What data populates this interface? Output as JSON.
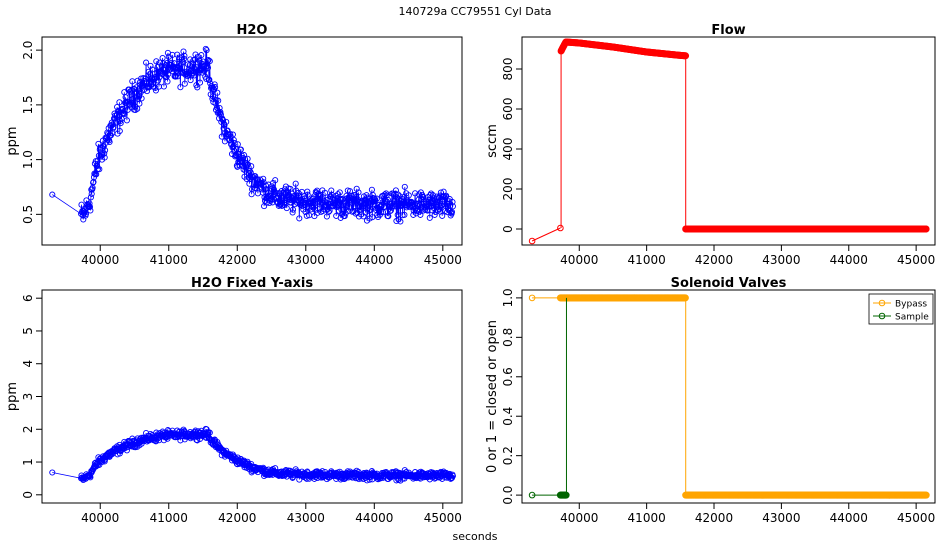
{
  "figure": {
    "title": "140729a    CC79551   Cyl Data",
    "xlabel": "seconds"
  },
  "colors": {
    "h2o": "#0000ff",
    "flow": "#ff0000",
    "bypass": "#ffa500",
    "sample": "#006400"
  },
  "chart_data": [
    {
      "id": "h2o",
      "type": "scatter",
      "title": "H2O",
      "ylabel": "ppm",
      "xlim": [
        39150,
        45280
      ],
      "ylim": [
        0.22,
        2.12
      ],
      "xticks": [
        40000,
        41000,
        42000,
        43000,
        44000,
        45000
      ],
      "yticks": [
        0.5,
        1.0,
        1.5,
        2.0
      ],
      "ytick_labels": [
        "0.5",
        "1.0",
        "1.5",
        "2.0"
      ],
      "curve": [
        [
          39300,
          0.68
        ],
        [
          39750,
          0.48
        ],
        [
          39850,
          0.62
        ],
        [
          39950,
          0.95
        ],
        [
          40100,
          1.2
        ],
        [
          40300,
          1.42
        ],
        [
          40500,
          1.6
        ],
        [
          40700,
          1.72
        ],
        [
          40900,
          1.8
        ],
        [
          41100,
          1.82
        ],
        [
          41300,
          1.84
        ],
        [
          41450,
          1.86
        ],
        [
          41580,
          1.85
        ],
        [
          41650,
          1.6
        ],
        [
          41800,
          1.3
        ],
        [
          42000,
          1.05
        ],
        [
          42200,
          0.85
        ],
        [
          42400,
          0.72
        ],
        [
          42600,
          0.65
        ],
        [
          42800,
          0.63
        ],
        [
          43000,
          0.62
        ],
        [
          43500,
          0.6
        ],
        [
          44000,
          0.59
        ],
        [
          44500,
          0.59
        ],
        [
          45000,
          0.58
        ],
        [
          45150,
          0.58
        ]
      ],
      "noise": 0.12
    },
    {
      "id": "flow",
      "type": "line",
      "title": "Flow",
      "ylabel": "sccm",
      "xlim": [
        39150,
        45280
      ],
      "ylim": [
        -80,
        960
      ],
      "xticks": [
        40000,
        41000,
        42000,
        43000,
        44000,
        45000
      ],
      "yticks": [
        0,
        200,
        400,
        600,
        800
      ],
      "ytick_labels": [
        "0",
        "200",
        "400",
        "600",
        "800"
      ],
      "start_points": [
        [
          39300,
          -60
        ],
        [
          39720,
          5
        ]
      ],
      "jump_x": 39730,
      "plateau": [
        [
          39730,
          890
        ],
        [
          39800,
          935
        ],
        [
          40000,
          930
        ],
        [
          40500,
          910
        ],
        [
          41000,
          885
        ],
        [
          41500,
          868
        ],
        [
          41580,
          866
        ]
      ],
      "drop_x": 41580,
      "baseline": [
        [
          41580,
          0
        ],
        [
          45150,
          0
        ]
      ]
    },
    {
      "id": "h2o-fixed",
      "type": "scatter",
      "title": "H2O Fixed Y-axis",
      "ylabel": "ppm",
      "xlim": [
        39150,
        45280
      ],
      "ylim": [
        -0.25,
        6.25
      ],
      "xticks": [
        40000,
        41000,
        42000,
        43000,
        44000,
        45000
      ],
      "yticks": [
        0,
        1,
        2,
        3,
        4,
        5,
        6
      ],
      "ytick_labels": [
        "0",
        "1",
        "2",
        "3",
        "4",
        "5",
        "6"
      ],
      "noise": 0.12
    },
    {
      "id": "valves",
      "type": "line",
      "title": "Solenoid Valves",
      "ylabel": "0 or 1 = closed or open",
      "xlim": [
        39150,
        45280
      ],
      "ylim": [
        -0.04,
        1.04
      ],
      "xticks": [
        40000,
        41000,
        42000,
        43000,
        44000,
        45000
      ],
      "yticks": [
        0.0,
        0.2,
        0.4,
        0.6,
        0.8,
        1.0
      ],
      "ytick_labels": [
        "0.0",
        "0.2",
        "0.4",
        "0.6",
        "0.8",
        "1.0"
      ],
      "series": [
        {
          "name": "Bypass",
          "color": "#ffa500",
          "points": [
            [
              39300,
              1
            ],
            [
              39720,
              1
            ],
            [
              41580,
              1
            ],
            [
              41580,
              0
            ],
            [
              45150,
              0
            ]
          ],
          "dense_ranges": [
            [
              39720,
              41580,
              1
            ],
            [
              41580,
              45150,
              0
            ]
          ]
        },
        {
          "name": "Sample",
          "color": "#006400",
          "points": [
            [
              39300,
              0
            ],
            [
              39720,
              0
            ],
            [
              39810,
              0
            ],
            [
              39810,
              1
            ]
          ],
          "dense_ranges": [
            [
              39720,
              39810,
              0
            ]
          ]
        }
      ],
      "legend_position": "top-right"
    }
  ]
}
